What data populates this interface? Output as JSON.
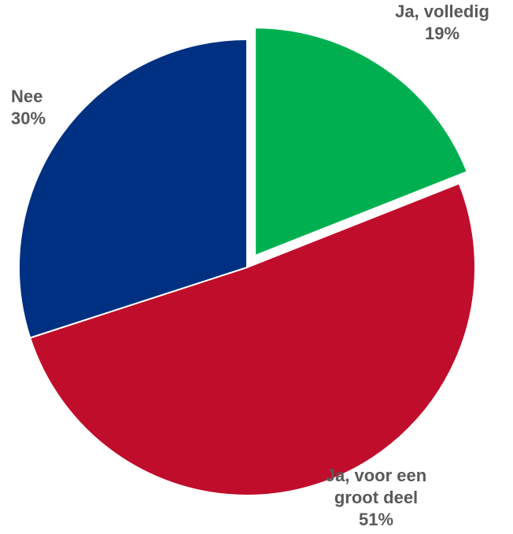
{
  "chart_data": {
    "type": "pie",
    "slices": [
      {
        "label": [
          "Ja, volledig"
        ],
        "percent_label": "19%",
        "value": 19,
        "color": "#00B050",
        "exploded": true
      },
      {
        "label": [
          "Ja, voor een",
          "groot deel"
        ],
        "percent_label": "51%",
        "value": 51,
        "color": "#C00D2B",
        "exploded": false
      },
      {
        "label": [
          "Nee"
        ],
        "percent_label": "30%",
        "value": 30,
        "color": "#003082",
        "exploded": false
      }
    ]
  }
}
